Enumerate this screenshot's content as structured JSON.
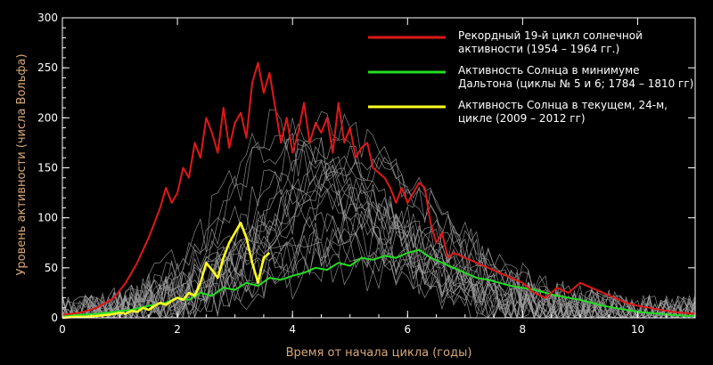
{
  "chart_data": {
    "type": "line",
    "xlabel": "Время от начала цикла (годы)",
    "ylabel": "Уровень активности (числа Вольфа)",
    "xlim": [
      0,
      11
    ],
    "ylim": [
      0,
      300
    ],
    "x_ticks": [
      "0",
      "2",
      "4",
      "6",
      "8",
      "10"
    ],
    "y_ticks": [
      "0",
      "50",
      "100",
      "150",
      "200",
      "250",
      "300"
    ],
    "grid": false,
    "legend_position": "top-right",
    "colors": {
      "background": "#000000",
      "axis": "#ffffff",
      "axis_title": "#d8a878",
      "history": "#a0a0a0",
      "record": "#e01818",
      "dalton": "#22dd22",
      "current": "#ffff22"
    },
    "series": [
      {
        "name": "Рекордный 19-й цикл солнечной активности (1954 – 1964 гг.)",
        "legend": [
          "Рекордный 19-й цикл солнечной",
          "активности (1954 – 1964 гг.)"
        ],
        "color": "#e01818",
        "x": [
          0,
          0.3,
          0.6,
          0.9,
          1.1,
          1.3,
          1.5,
          1.6,
          1.7,
          1.8,
          1.9,
          2.0,
          2.1,
          2.2,
          2.3,
          2.4,
          2.5,
          2.6,
          2.7,
          2.8,
          2.9,
          3.0,
          3.1,
          3.2,
          3.3,
          3.4,
          3.5,
          3.6,
          3.7,
          3.8,
          3.9,
          4.0,
          4.1,
          4.2,
          4.3,
          4.4,
          4.5,
          4.6,
          4.7,
          4.8,
          4.9,
          5.0,
          5.1,
          5.2,
          5.3,
          5.4,
          5.5,
          5.6,
          5.7,
          5.8,
          5.9,
          6.0,
          6.1,
          6.2,
          6.3,
          6.4,
          6.5,
          6.6,
          6.7,
          6.8,
          7.0,
          7.2,
          7.4,
          7.6,
          7.8,
          8.0,
          8.2,
          8.4,
          8.6,
          8.8,
          9.0,
          9.2,
          9.4,
          9.6,
          9.8,
          10.0,
          10.2,
          10.4,
          10.6,
          10.8,
          11.0
        ],
        "y": [
          3,
          5,
          10,
          20,
          35,
          55,
          80,
          95,
          110,
          130,
          115,
          125,
          150,
          140,
          175,
          160,
          200,
          185,
          165,
          210,
          170,
          195,
          205,
          180,
          235,
          255,
          225,
          245,
          210,
          175,
          200,
          165,
          185,
          215,
          175,
          195,
          185,
          200,
          165,
          215,
          175,
          190,
          160,
          170,
          175,
          150,
          145,
          140,
          130,
          115,
          130,
          115,
          125,
          135,
          130,
          95,
          75,
          85,
          60,
          65,
          60,
          55,
          50,
          45,
          40,
          35,
          25,
          20,
          30,
          25,
          35,
          30,
          25,
          20,
          15,
          12,
          10,
          8,
          6,
          5,
          4
        ]
      },
      {
        "name": "Активность Солнца в минимуме Дальтона (циклы № 5 и 6; 1784 – 1810 гг)",
        "legend": [
          "Активность Солнца в минимуме",
          "Дальтона (циклы № 5 и 6; 1784 – 1810 гг)"
        ],
        "color": "#22dd22",
        "x": [
          0,
          0.3,
          0.6,
          0.9,
          1.2,
          1.5,
          1.8,
          2.0,
          2.2,
          2.4,
          2.6,
          2.8,
          3.0,
          3.2,
          3.4,
          3.6,
          3.8,
          4.0,
          4.2,
          4.4,
          4.6,
          4.8,
          5.0,
          5.2,
          5.4,
          5.6,
          5.8,
          6.0,
          6.2,
          6.4,
          6.6,
          6.8,
          7.0,
          7.2,
          7.4,
          7.6,
          7.8,
          8.0,
          8.2,
          8.4,
          8.6,
          8.8,
          9.0,
          9.2,
          9.4,
          9.6,
          9.8,
          10.0,
          10.2,
          10.4,
          10.6,
          10.8,
          11.0
        ],
        "y": [
          2,
          3,
          4,
          6,
          8,
          12,
          15,
          20,
          18,
          25,
          22,
          30,
          28,
          35,
          32,
          40,
          38,
          42,
          45,
          50,
          48,
          55,
          52,
          60,
          58,
          62,
          60,
          65,
          68,
          60,
          55,
          50,
          45,
          40,
          38,
          35,
          32,
          30,
          28,
          25,
          22,
          20,
          18,
          15,
          12,
          10,
          8,
          6,
          5,
          4,
          3,
          2,
          2
        ]
      },
      {
        "name": "Активность Солнца в текущем, 24-м, цикле (2009 – 2012 гг)",
        "legend": [
          "Активность Солнца в текущем, 24-м,",
          "цикле (2009  – 2012 гг)"
        ],
        "color": "#ffff22",
        "x": [
          0,
          0.2,
          0.4,
          0.6,
          0.8,
          1.0,
          1.1,
          1.2,
          1.3,
          1.4,
          1.5,
          1.6,
          1.7,
          1.8,
          1.9,
          2.0,
          2.1,
          2.2,
          2.3,
          2.4,
          2.5,
          2.6,
          2.7,
          2.8,
          2.9,
          3.0,
          3.1,
          3.2,
          3.3,
          3.4,
          3.5,
          3.6
        ],
        "y": [
          0,
          1,
          1,
          2,
          3,
          5,
          4,
          7,
          6,
          10,
          8,
          12,
          15,
          13,
          17,
          20,
          18,
          25,
          22,
          35,
          55,
          48,
          40,
          60,
          75,
          85,
          95,
          80,
          55,
          35,
          60,
          65
        ]
      }
    ]
  }
}
